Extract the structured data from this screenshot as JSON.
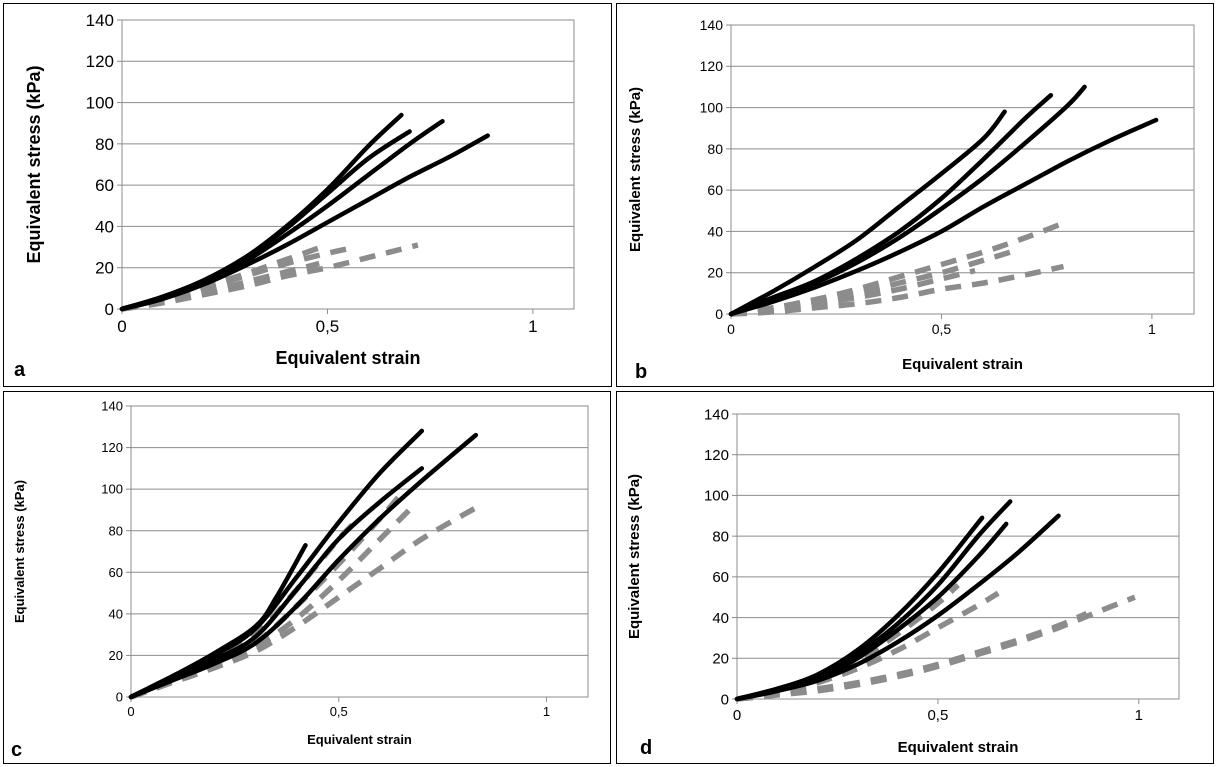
{
  "colors": {
    "solid_series": "#000000",
    "dashed_series": "#8c8c8c",
    "grid": "#8c8c8c"
  },
  "chart_data": [
    {
      "type": "line",
      "panel_label": "a",
      "xlabel": "Equivalent strain",
      "ylabel": "Equivalent stress (kPa)",
      "xlim": [
        0,
        1.1
      ],
      "ylim": [
        0,
        140
      ],
      "xticks": [
        0,
        0.5,
        1
      ],
      "xtick_labels": [
        "0",
        "0,5",
        "1"
      ],
      "yticks": [
        0,
        20,
        40,
        60,
        80,
        100,
        120,
        140
      ],
      "ytick_labels": [
        "0",
        "20",
        "40",
        "60",
        "80",
        "100",
        "120",
        "140"
      ],
      "grid": "horizontal",
      "series": [
        {
          "style": "solid",
          "x": [
            0,
            0.1,
            0.2,
            0.3,
            0.4,
            0.5,
            0.6,
            0.68
          ],
          "y": [
            0,
            6,
            14,
            25,
            40,
            58,
            79,
            94
          ]
        },
        {
          "style": "solid",
          "x": [
            0,
            0.1,
            0.2,
            0.3,
            0.4,
            0.5,
            0.6,
            0.7
          ],
          "y": [
            0,
            6,
            14,
            25,
            39,
            56,
            73,
            86
          ]
        },
        {
          "style": "solid",
          "x": [
            0,
            0.1,
            0.2,
            0.3,
            0.4,
            0.5,
            0.6,
            0.7,
            0.78
          ],
          "y": [
            0,
            5,
            13,
            23,
            36,
            50,
            65,
            80,
            91
          ]
        },
        {
          "style": "solid",
          "x": [
            0,
            0.1,
            0.2,
            0.3,
            0.4,
            0.5,
            0.6,
            0.7,
            0.8,
            0.89
          ],
          "y": [
            0,
            5,
            12,
            21,
            31,
            42,
            53,
            64,
            74,
            84
          ]
        },
        {
          "style": "dashed",
          "x": [
            0,
            0.1,
            0.2,
            0.3,
            0.4,
            0.5
          ],
          "y": [
            0,
            5,
            11,
            17,
            24,
            31
          ]
        },
        {
          "style": "dashed",
          "x": [
            0,
            0.1,
            0.2,
            0.3,
            0.4,
            0.5,
            0.57
          ],
          "y": [
            0,
            4,
            10,
            16,
            22,
            27,
            30
          ]
        },
        {
          "style": "dashed",
          "x": [
            0,
            0.1,
            0.2,
            0.3,
            0.4,
            0.48
          ],
          "y": [
            0,
            4,
            8,
            13,
            18,
            22
          ]
        },
        {
          "style": "dashed",
          "x": [
            0,
            0.1,
            0.2,
            0.3,
            0.4,
            0.5,
            0.6,
            0.72
          ],
          "y": [
            0,
            3,
            7,
            11,
            16,
            20,
            25,
            31
          ]
        }
      ]
    },
    {
      "type": "line",
      "panel_label": "b",
      "xlabel": "Equivalent strain",
      "ylabel": "Equivalent stress (kPa)",
      "xlim": [
        0,
        1.1
      ],
      "ylim": [
        0,
        140
      ],
      "xticks": [
        0,
        0.5,
        1
      ],
      "xtick_labels": [
        "0",
        "0,5",
        "1"
      ],
      "yticks": [
        0,
        20,
        40,
        60,
        80,
        100,
        120,
        140
      ],
      "ytick_labels": [
        "0",
        "20",
        "40",
        "60",
        "80",
        "100",
        "120",
        "140"
      ],
      "grid": "horizontal",
      "series": [
        {
          "style": "solid",
          "x": [
            0,
            0.1,
            0.2,
            0.3,
            0.4,
            0.5,
            0.6,
            0.65
          ],
          "y": [
            0,
            11,
            23,
            36,
            52,
            68,
            85,
            98
          ]
        },
        {
          "style": "solid",
          "x": [
            0,
            0.1,
            0.2,
            0.3,
            0.4,
            0.5,
            0.6,
            0.7,
            0.76
          ],
          "y": [
            0,
            8,
            16,
            27,
            40,
            56,
            75,
            95,
            106
          ]
        },
        {
          "style": "solid",
          "x": [
            0,
            0.1,
            0.2,
            0.3,
            0.4,
            0.5,
            0.6,
            0.7,
            0.8,
            0.84
          ],
          "y": [
            0,
            7,
            15,
            25,
            37,
            51,
            66,
            83,
            101,
            110
          ]
        },
        {
          "style": "solid",
          "x": [
            0,
            0.1,
            0.2,
            0.3,
            0.4,
            0.5,
            0.6,
            0.7,
            0.8,
            0.9,
            1.01
          ],
          "y": [
            0,
            6,
            13,
            21,
            30,
            40,
            52,
            63,
            74,
            84,
            94
          ]
        },
        {
          "style": "dashed",
          "x": [
            0,
            0.1,
            0.2,
            0.3,
            0.4,
            0.5,
            0.6,
            0.7,
            0.79
          ],
          "y": [
            0,
            3,
            7,
            12,
            18,
            24,
            30,
            37,
            44
          ]
        },
        {
          "style": "dashed",
          "x": [
            0,
            0.1,
            0.2,
            0.3,
            0.4,
            0.5,
            0.6,
            0.68
          ],
          "y": [
            0,
            3,
            6,
            10,
            15,
            20,
            26,
            31
          ]
        },
        {
          "style": "dashed",
          "x": [
            0,
            0.1,
            0.2,
            0.3,
            0.4,
            0.5,
            0.58
          ],
          "y": [
            0,
            2,
            5,
            8,
            12,
            17,
            21
          ]
        },
        {
          "style": "dashed",
          "x": [
            0,
            0.1,
            0.2,
            0.3,
            0.4,
            0.5,
            0.6,
            0.7,
            0.79
          ],
          "y": [
            0,
            1,
            3,
            5,
            8,
            12,
            15,
            19,
            23
          ]
        }
      ]
    },
    {
      "type": "line",
      "panel_label": "c",
      "xlabel": "Equivalent strain",
      "ylabel": "Equivalent stress (kPa)",
      "xlim": [
        0,
        1.1
      ],
      "ylim": [
        0,
        140
      ],
      "xticks": [
        0,
        0.5,
        1
      ],
      "xtick_labels": [
        "0",
        "0,5",
        "1"
      ],
      "yticks": [
        0,
        20,
        40,
        60,
        80,
        100,
        120,
        140
      ],
      "ytick_labels": [
        "0",
        "20",
        "40",
        "60",
        "80",
        "100",
        "120",
        "140"
      ],
      "grid": "horizontal",
      "series": [
        {
          "style": "solid",
          "x": [
            0,
            0.1,
            0.2,
            0.3,
            0.35,
            0.42
          ],
          "y": [
            0,
            10,
            21,
            34,
            48,
            73
          ]
        },
        {
          "style": "solid",
          "x": [
            0,
            0.1,
            0.2,
            0.3,
            0.4,
            0.5,
            0.6,
            0.7
          ],
          "y": [
            0,
            10,
            20,
            33,
            58,
            84,
            108,
            128
          ]
        },
        {
          "style": "solid",
          "x": [
            0,
            0.1,
            0.2,
            0.3,
            0.4,
            0.5,
            0.6,
            0.7
          ],
          "y": [
            0,
            9,
            18,
            29,
            52,
            76,
            94,
            110
          ]
        },
        {
          "style": "solid",
          "x": [
            0,
            0.1,
            0.2,
            0.3,
            0.4,
            0.5,
            0.6,
            0.7,
            0.83
          ],
          "y": [
            0,
            8,
            16,
            26,
            44,
            66,
            86,
            104,
            126
          ]
        },
        {
          "style": "dashed",
          "x": [
            0,
            0.1,
            0.2,
            0.3,
            0.4,
            0.5,
            0.55
          ],
          "y": [
            0,
            9,
            18,
            30,
            52,
            76,
            86
          ]
        },
        {
          "style": "dashed",
          "x": [
            0,
            0.1,
            0.2,
            0.3,
            0.4,
            0.5,
            0.6,
            0.66
          ],
          "y": [
            0,
            8,
            16,
            26,
            44,
            64,
            86,
            100
          ]
        },
        {
          "style": "dashed",
          "x": [
            0,
            0.1,
            0.2,
            0.3,
            0.4,
            0.5,
            0.6,
            0.68
          ],
          "y": [
            0,
            8,
            15,
            24,
            38,
            56,
            76,
            92
          ]
        },
        {
          "style": "dashed",
          "x": [
            0,
            0.1,
            0.2,
            0.3,
            0.4,
            0.5,
            0.6,
            0.7,
            0.83
          ],
          "y": [
            0,
            7,
            14,
            22,
            34,
            48,
            62,
            76,
            91
          ]
        }
      ]
    },
    {
      "type": "line",
      "panel_label": "d",
      "xlabel": "Equivalent strain",
      "ylabel": "Equivalent stress (kPa)",
      "xlim": [
        0,
        1.1
      ],
      "ylim": [
        0,
        140
      ],
      "xticks": [
        0,
        0.5,
        1
      ],
      "xtick_labels": [
        "0",
        "0,5",
        "1"
      ],
      "yticks": [
        0,
        20,
        40,
        60,
        80,
        100,
        120,
        140
      ],
      "ytick_labels": [
        "0",
        "20",
        "40",
        "60",
        "80",
        "100",
        "120",
        "140"
      ],
      "grid": "horizontal",
      "series": [
        {
          "style": "solid",
          "x": [
            0,
            0.1,
            0.2,
            0.3,
            0.4,
            0.5,
            0.61
          ],
          "y": [
            0,
            5,
            12,
            24,
            41,
            62,
            89
          ]
        },
        {
          "style": "solid",
          "x": [
            0,
            0.1,
            0.2,
            0.3,
            0.4,
            0.5,
            0.6,
            0.68
          ],
          "y": [
            0,
            5,
            11,
            22,
            37,
            56,
            80,
            97
          ]
        },
        {
          "style": "solid",
          "x": [
            0,
            0.1,
            0.2,
            0.3,
            0.4,
            0.5,
            0.6,
            0.67
          ],
          "y": [
            0,
            4,
            10,
            20,
            34,
            50,
            70,
            86
          ]
        },
        {
          "style": "solid",
          "x": [
            0,
            0.1,
            0.2,
            0.3,
            0.4,
            0.5,
            0.6,
            0.7,
            0.8
          ],
          "y": [
            0,
            4,
            9,
            17,
            28,
            41,
            56,
            72,
            90
          ]
        },
        {
          "style": "dashed",
          "x": [
            0,
            0.1,
            0.2,
            0.3,
            0.4,
            0.5,
            0.55
          ],
          "y": [
            0,
            4,
            10,
            19,
            32,
            47,
            56
          ]
        },
        {
          "style": "dashed",
          "x": [
            0,
            0.1,
            0.2,
            0.3,
            0.4,
            0.5,
            0.6,
            0.65
          ],
          "y": [
            0,
            3,
            8,
            15,
            24,
            35,
            46,
            52
          ]
        },
        {
          "style": "dashed",
          "x": [
            0,
            0.1,
            0.2,
            0.3,
            0.4,
            0.5,
            0.6,
            0.7,
            0.8,
            0.87
          ],
          "y": [
            0,
            2,
            5,
            8,
            12,
            17,
            23,
            29,
            36,
            42
          ]
        },
        {
          "style": "dashed",
          "x": [
            0,
            0.1,
            0.2,
            0.3,
            0.4,
            0.5,
            0.6,
            0.7,
            0.8,
            0.9,
            0.99
          ],
          "y": [
            0,
            2,
            4,
            7,
            11,
            16,
            22,
            28,
            35,
            43,
            50
          ]
        }
      ]
    }
  ]
}
